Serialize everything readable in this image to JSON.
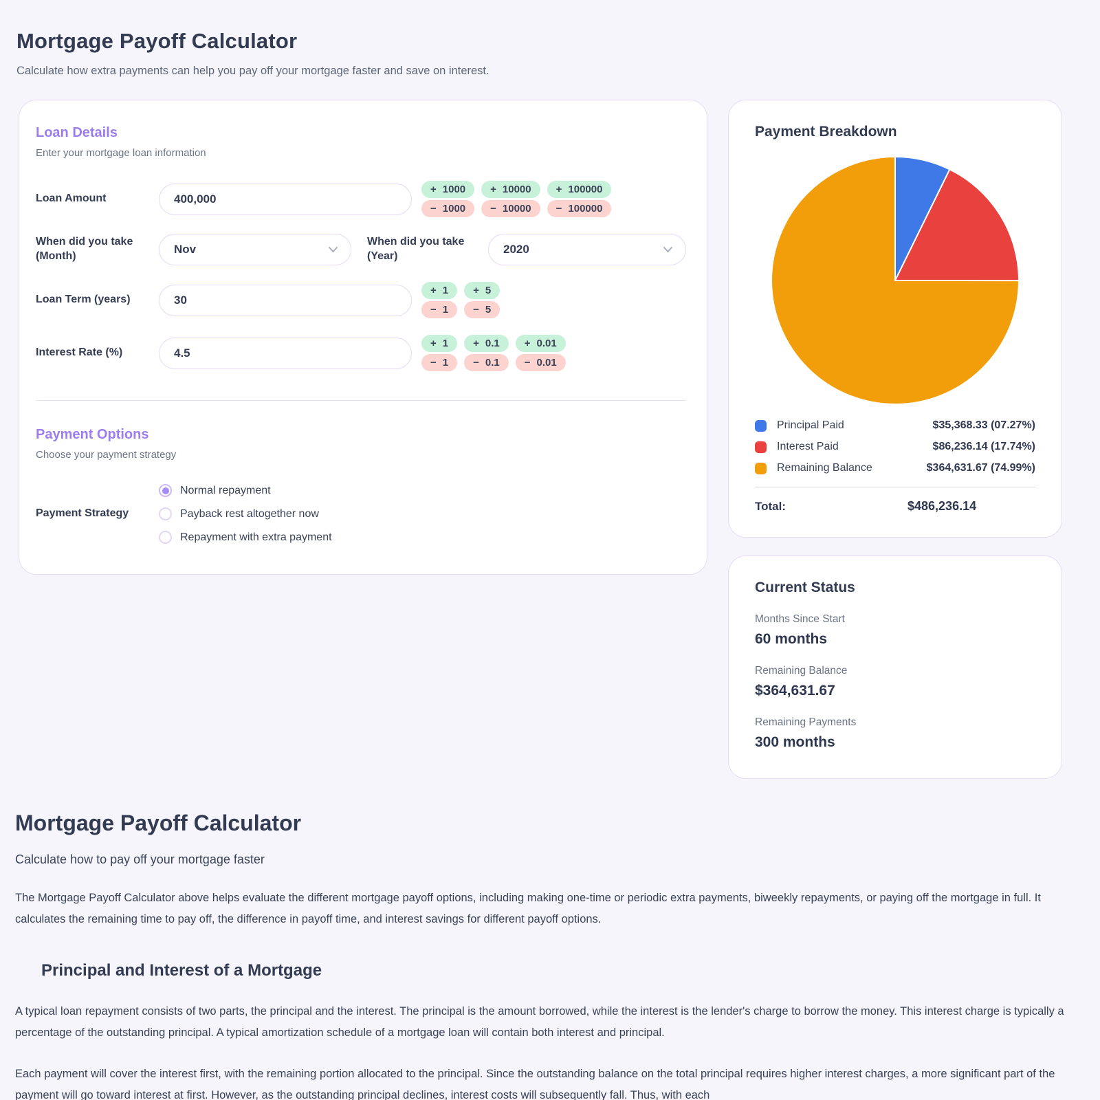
{
  "page": {
    "title": "Mortgage Payoff Calculator",
    "subtitle": "Calculate how extra payments can help you pay off your mortgage faster and save on interest."
  },
  "ui": {
    "plus": "+",
    "minus": "−"
  },
  "loan_details": {
    "heading": "Loan Details",
    "subheading": "Enter your mortgage loan information",
    "amount": {
      "label": "Loan Amount",
      "value": "400,000",
      "steppers": [
        {
          "plus": "1000",
          "minus": "1000"
        },
        {
          "plus": "10000",
          "minus": "10000"
        },
        {
          "plus": "100000",
          "minus": "100000"
        }
      ]
    },
    "start_month": {
      "label_line1": "When did you take",
      "label_line2": "(Month)",
      "value": "Nov"
    },
    "start_year": {
      "label_line1": "When did you take",
      "label_line2": "(Year)",
      "value": "2020"
    },
    "term": {
      "label": "Loan Term (years)",
      "value": "30",
      "steppers": [
        {
          "plus": "1",
          "minus": "1"
        },
        {
          "plus": "5",
          "minus": "5"
        }
      ]
    },
    "rate": {
      "label": "Interest Rate (%)",
      "value": "4.5",
      "steppers": [
        {
          "plus": "1",
          "minus": "1"
        },
        {
          "plus": "0.1",
          "minus": "0.1"
        },
        {
          "plus": "0.01",
          "minus": "0.01"
        }
      ]
    }
  },
  "payment_options": {
    "heading": "Payment Options",
    "subheading": "Choose your payment strategy",
    "label": "Payment Strategy",
    "strategies": [
      {
        "label": "Normal repayment",
        "selected": true
      },
      {
        "label": "Payback rest altogether now",
        "selected": false
      },
      {
        "label": "Repayment with extra payment",
        "selected": false
      }
    ]
  },
  "chart_data": {
    "type": "pie",
    "title": "Payment Breakdown",
    "start_angle_deg": -90,
    "direction": "clockwise",
    "legend_position": "bottom",
    "slices": [
      {
        "label": "Principal Paid",
        "value": 35368.33,
        "pct": 7.27,
        "display": "$35,368.33 (07.27%)",
        "color": "#3f79e8"
      },
      {
        "label": "Interest Paid",
        "value": 86236.14,
        "pct": 17.74,
        "display": "$86,236.14 (17.74%)",
        "color": "#e8413e"
      },
      {
        "label": "Remaining Balance",
        "value": 364631.67,
        "pct": 74.99,
        "display": "$364,631.67 (74.99%)",
        "color": "#f29e0b"
      }
    ],
    "total": 486236.14,
    "total_label": "Total:",
    "total_display": "$486,236.14"
  },
  "current_status": {
    "heading": "Current Status",
    "items": [
      {
        "label": "Months Since Start",
        "value": "60 months"
      },
      {
        "label": "Remaining Balance",
        "value": "$364,631.67"
      },
      {
        "label": "Remaining Payments",
        "value": "300 months"
      }
    ]
  },
  "article": {
    "title": "Mortgage Payoff Calculator",
    "subtitle": "Calculate how to pay off your mortgage faster",
    "paragraph1": "The Mortgage Payoff Calculator above helps evaluate the different mortgage payoff options, including making one-time or periodic extra payments, biweekly repayments, or paying off the mortgage in full. It calculates the remaining time to pay off, the difference in payoff time, and interest savings for different payoff options.",
    "section_heading": "Principal and Interest of a Mortgage",
    "paragraph2": "A typical loan repayment consists of two parts, the principal and the interest. The principal is the amount borrowed, while the interest is the lender's charge to borrow the money. This interest charge is typically a percentage of the outstanding principal. A typical amortization schedule of a mortgage loan will contain both interest and principal.",
    "paragraph3": "Each payment will cover the interest first, with the remaining portion allocated to the principal. Since the outstanding balance on the total principal requires higher interest charges, a more significant part of the payment will go toward interest at first. However, as the outstanding principal declines, interest costs will subsequently fall. Thus, with each"
  }
}
